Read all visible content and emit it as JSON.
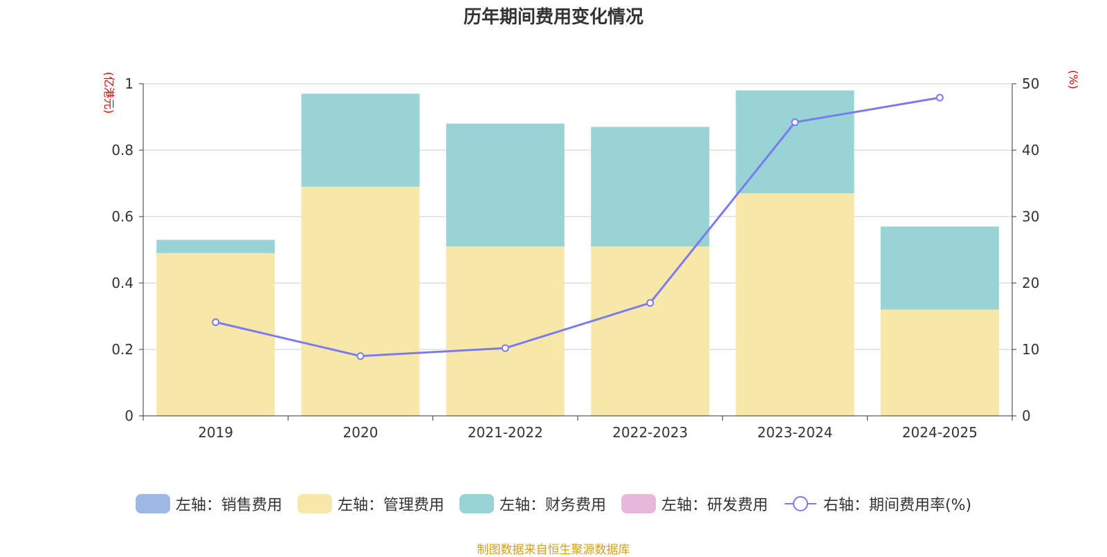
{
  "chart_data": {
    "type": "bar",
    "title": "历年期间费用变化情况",
    "categories": [
      "2019",
      "2020",
      "2021-2022",
      "2022-2023",
      "2023-2024",
      "2024-2025"
    ],
    "left_axis": {
      "unit": "(亿港元)",
      "ylim": [
        0,
        1
      ],
      "ticks": [
        "0",
        "0.2",
        "0.4",
        "0.6",
        "0.8",
        "1"
      ]
    },
    "right_axis": {
      "unit": "(%)",
      "ylim": [
        0,
        50
      ],
      "ticks": [
        "0",
        "10",
        "20",
        "30",
        "40",
        "50"
      ]
    },
    "grid": true,
    "legend_position": "bottom",
    "series": [
      {
        "name": "左轴：销售费用",
        "type": "bar",
        "axis": "left",
        "color": "#9db8e2",
        "values": [
          0,
          0,
          0,
          0,
          0,
          0
        ]
      },
      {
        "name": "左轴：管理费用",
        "type": "bar",
        "axis": "left",
        "color": "#f7e7a8",
        "values": [
          0.49,
          0.69,
          0.51,
          0.51,
          0.67,
          0.32
        ]
      },
      {
        "name": "左轴：财务费用",
        "type": "bar",
        "axis": "left",
        "color": "#98d4d5",
        "values": [
          0.04,
          0.28,
          0.37,
          0.36,
          0.31,
          0.25
        ]
      },
      {
        "name": "左轴：研发费用",
        "type": "bar",
        "axis": "left",
        "color": "#e8b8da",
        "values": [
          0,
          0,
          0,
          0,
          0,
          0
        ]
      },
      {
        "name": "右轴：期间费用率(%)",
        "type": "line",
        "axis": "right",
        "color": "#7b7bef",
        "values": [
          14.1,
          9.0,
          10.2,
          17.0,
          44.2,
          47.9
        ]
      }
    ]
  },
  "source_note": "制图数据来自恒生聚源数据库"
}
